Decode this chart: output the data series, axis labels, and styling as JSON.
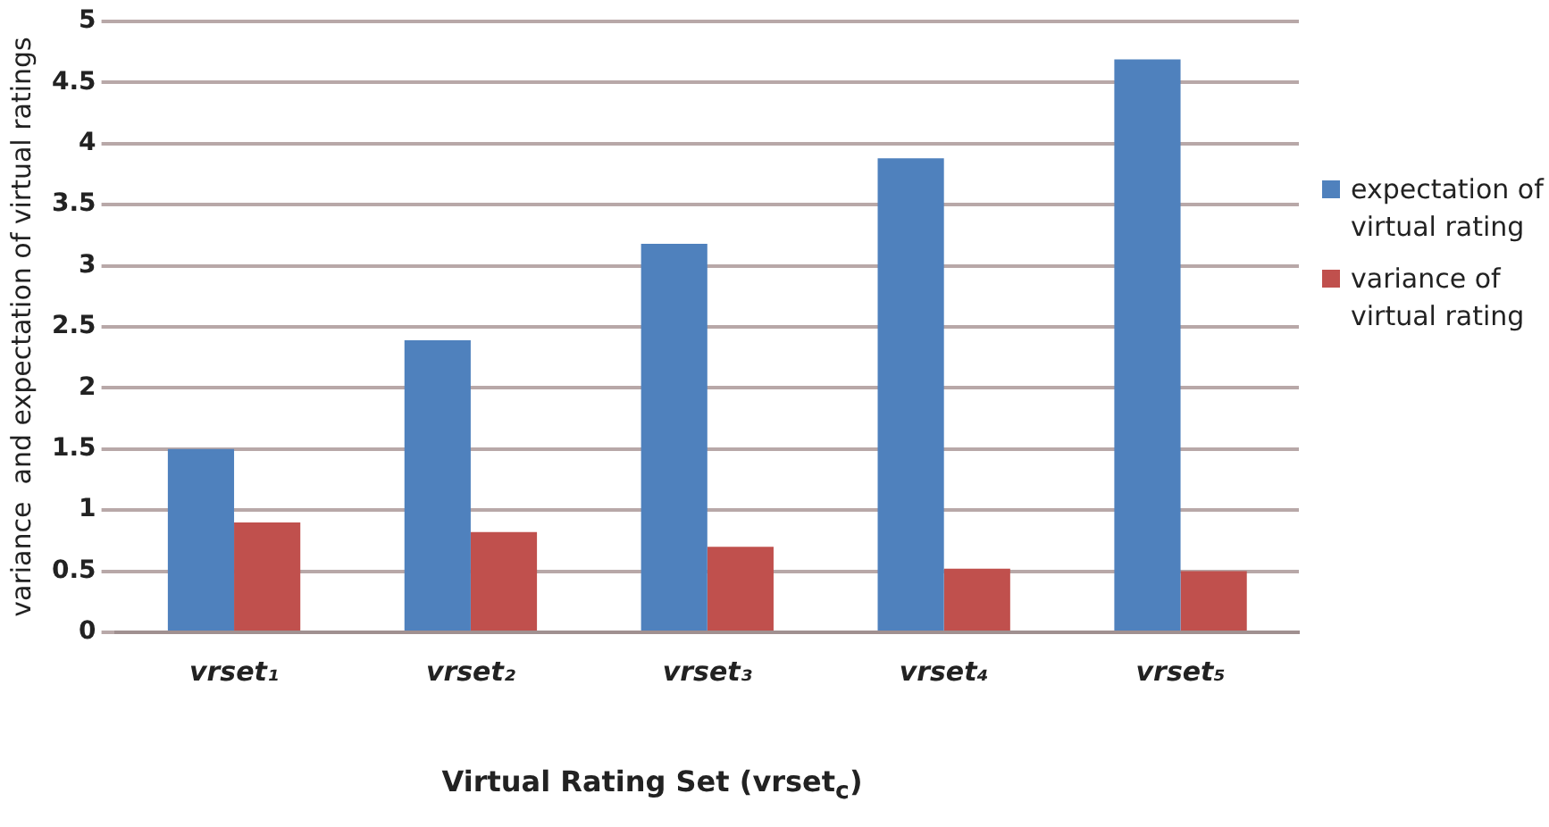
{
  "chart_data": {
    "type": "bar",
    "xlabel": "Virtual Rating Set (vrset$_{c}$)",
    "ylabel": "variance  and expectation of virtual ratings",
    "categories": [
      "vrset₁",
      "vrset₂",
      "vrset₃",
      "vrset₄",
      "vrset₅"
    ],
    "series": [
      {
        "name": "expectation of virtual rating",
        "color": "#4f81bd",
        "values": [
          1.5,
          2.39,
          3.18,
          3.88,
          4.69
        ]
      },
      {
        "name": "variance of virtual rating",
        "color": "#c0504d",
        "values": [
          0.9,
          0.82,
          0.7,
          0.52,
          0.5
        ]
      }
    ],
    "ylim": [
      0,
      5
    ],
    "yticks": [
      0,
      0.5,
      1,
      1.5,
      2,
      2.5,
      3,
      3.5,
      4,
      4.5,
      5
    ],
    "grid": "y",
    "legend": "right"
  }
}
